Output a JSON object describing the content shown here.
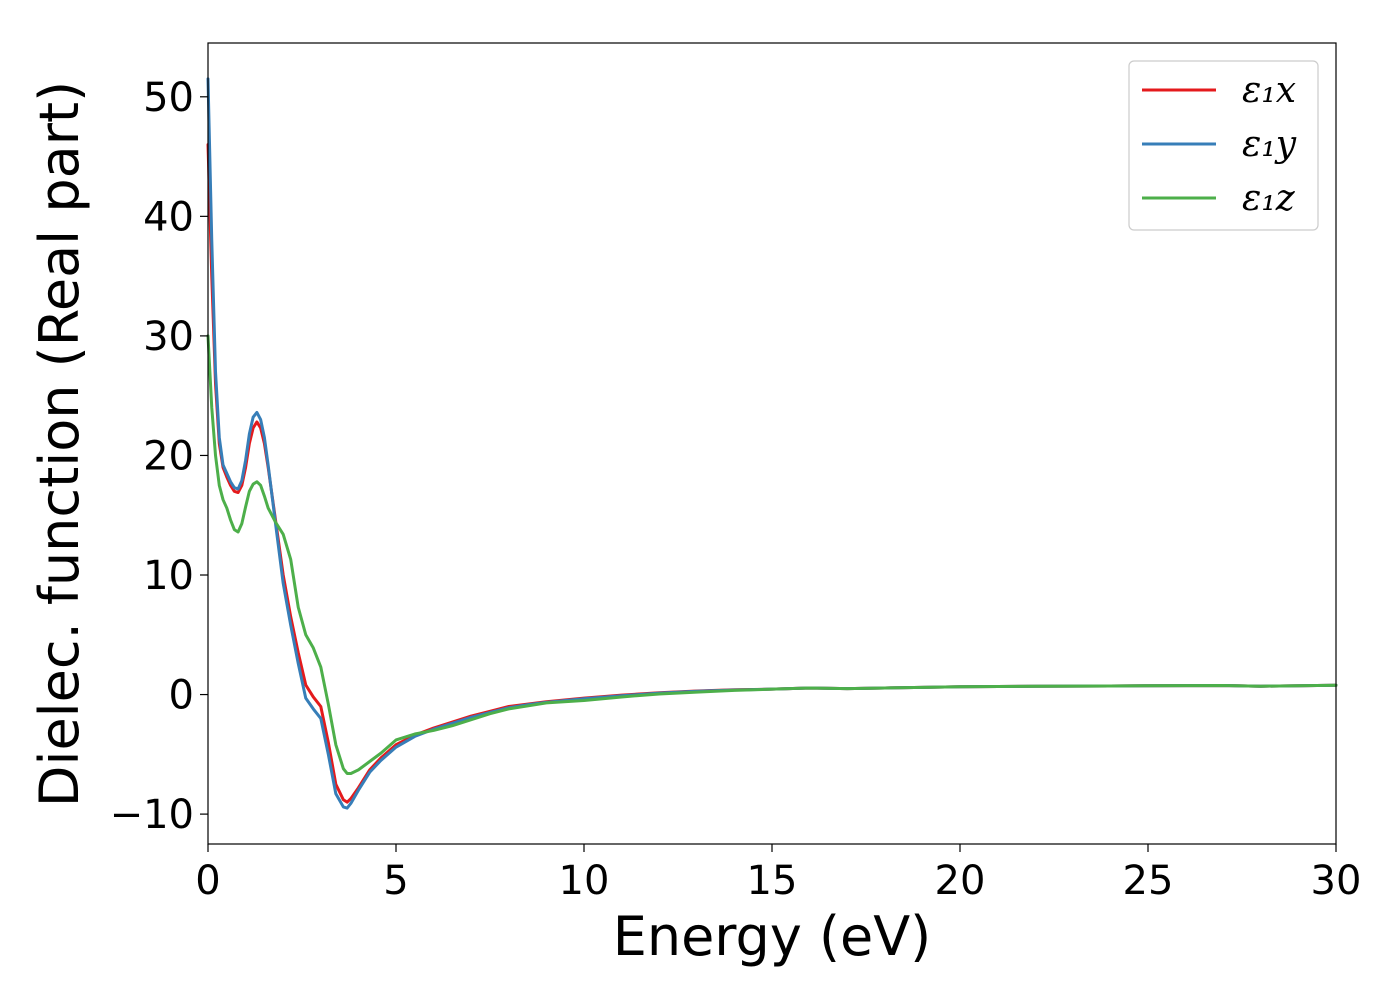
{
  "chart_data": {
    "type": "line",
    "title": "",
    "xlabel": "Energy (eV)",
    "ylabel": "Dielec. function (Real part)",
    "xlim": [
      0,
      30
    ],
    "ylim": [
      -12.5,
      54.5
    ],
    "xticks": [
      0,
      5,
      10,
      15,
      20,
      25,
      30
    ],
    "xtick_labels": [
      "0",
      "5",
      "10",
      "15",
      "20",
      "25",
      "30"
    ],
    "yticks": [
      -10,
      0,
      10,
      20,
      30,
      40,
      50
    ],
    "ytick_labels": [
      "−10",
      "0",
      "10",
      "20",
      "30",
      "40",
      "50"
    ],
    "grid": false,
    "legend_position": "top-right",
    "series": [
      {
        "name": "ε₁x",
        "color": "#e41a1c",
        "x": [
          0,
          0.1,
          0.2,
          0.3,
          0.4,
          0.5,
          0.6,
          0.7,
          0.8,
          0.9,
          1.0,
          1.1,
          1.2,
          1.3,
          1.4,
          1.5,
          1.6,
          1.8,
          2.0,
          2.2,
          2.4,
          2.6,
          2.8,
          3.0,
          3.2,
          3.4,
          3.6,
          3.7,
          3.8,
          4.0,
          4.3,
          4.6,
          5.0,
          5.5,
          6.0,
          6.5,
          7.0,
          7.5,
          8.0,
          8.5,
          9,
          10,
          11,
          12,
          13,
          14,
          15,
          16,
          17,
          18,
          19,
          20,
          22,
          24,
          26,
          27,
          28,
          30
        ],
        "y": [
          46,
          35,
          26,
          21,
          19,
          18.2,
          17.5,
          17.0,
          16.9,
          17.5,
          19.0,
          21.0,
          22.3,
          22.8,
          22.3,
          21.0,
          19.0,
          14.5,
          10.0,
          6.5,
          3.5,
          0.8,
          -0.2,
          -1.0,
          -4.0,
          -7.5,
          -8.8,
          -9.0,
          -8.7,
          -7.8,
          -6.3,
          -5.3,
          -4.2,
          -3.4,
          -2.8,
          -2.3,
          -1.8,
          -1.4,
          -1.0,
          -0.8,
          -0.6,
          -0.3,
          -0.05,
          0.15,
          0.3,
          0.4,
          0.45,
          0.55,
          0.5,
          0.55,
          0.6,
          0.65,
          0.7,
          0.72,
          0.75,
          0.76,
          0.7,
          0.78
        ]
      },
      {
        "name": "ε₁y",
        "color": "#377eb8",
        "x": [
          0,
          0.1,
          0.2,
          0.3,
          0.4,
          0.5,
          0.6,
          0.7,
          0.8,
          0.9,
          1.0,
          1.1,
          1.2,
          1.3,
          1.4,
          1.5,
          1.6,
          1.8,
          2.0,
          2.2,
          2.4,
          2.6,
          2.8,
          3.0,
          3.2,
          3.4,
          3.6,
          3.7,
          3.8,
          4.0,
          4.3,
          4.6,
          5.0,
          5.5,
          6.0,
          6.5,
          7.0,
          7.5,
          8.0,
          8.5,
          9,
          10,
          11,
          12,
          13,
          14,
          15,
          16,
          17,
          18,
          19,
          20,
          22,
          24,
          26,
          27,
          28,
          30
        ],
        "y": [
          51.5,
          38,
          27,
          21.5,
          19.2,
          18.5,
          17.8,
          17.3,
          17.2,
          17.9,
          19.6,
          21.8,
          23.2,
          23.6,
          23.0,
          21.5,
          19.2,
          14.2,
          9.3,
          5.8,
          2.6,
          -0.3,
          -1.2,
          -2.0,
          -5.0,
          -8.3,
          -9.4,
          -9.5,
          -9.1,
          -8.0,
          -6.5,
          -5.5,
          -4.4,
          -3.5,
          -2.9,
          -2.4,
          -1.9,
          -1.5,
          -1.1,
          -0.85,
          -0.65,
          -0.35,
          -0.1,
          0.12,
          0.28,
          0.38,
          0.45,
          0.55,
          0.5,
          0.55,
          0.6,
          0.65,
          0.7,
          0.72,
          0.75,
          0.76,
          0.7,
          0.78
        ]
      },
      {
        "name": "ε₁z",
        "color": "#4daf4a",
        "x": [
          0,
          0.1,
          0.2,
          0.3,
          0.4,
          0.5,
          0.6,
          0.7,
          0.8,
          0.9,
          1.0,
          1.1,
          1.2,
          1.3,
          1.4,
          1.5,
          1.6,
          1.8,
          2.0,
          2.2,
          2.4,
          2.6,
          2.8,
          3.0,
          3.2,
          3.4,
          3.6,
          3.7,
          3.8,
          4.0,
          4.3,
          4.6,
          5.0,
          5.5,
          6.0,
          6.5,
          7.0,
          7.5,
          8.0,
          8.5,
          9,
          10,
          11,
          12,
          13,
          14,
          15,
          16,
          17,
          18,
          19,
          20,
          22,
          24,
          26,
          27,
          28,
          30
        ],
        "y": [
          30,
          24,
          20,
          17.5,
          16.3,
          15.6,
          14.6,
          13.8,
          13.6,
          14.3,
          15.7,
          17.0,
          17.6,
          17.8,
          17.5,
          16.6,
          15.6,
          14.4,
          13.4,
          11.3,
          7.3,
          5.0,
          3.9,
          2.3,
          -0.8,
          -4.2,
          -6.2,
          -6.6,
          -6.6,
          -6.3,
          -5.6,
          -4.9,
          -3.8,
          -3.3,
          -3.0,
          -2.6,
          -2.1,
          -1.6,
          -1.2,
          -0.95,
          -0.7,
          -0.5,
          -0.2,
          0.05,
          0.2,
          0.35,
          0.45,
          0.55,
          0.5,
          0.55,
          0.6,
          0.65,
          0.7,
          0.72,
          0.75,
          0.76,
          0.7,
          0.78
        ]
      }
    ]
  }
}
